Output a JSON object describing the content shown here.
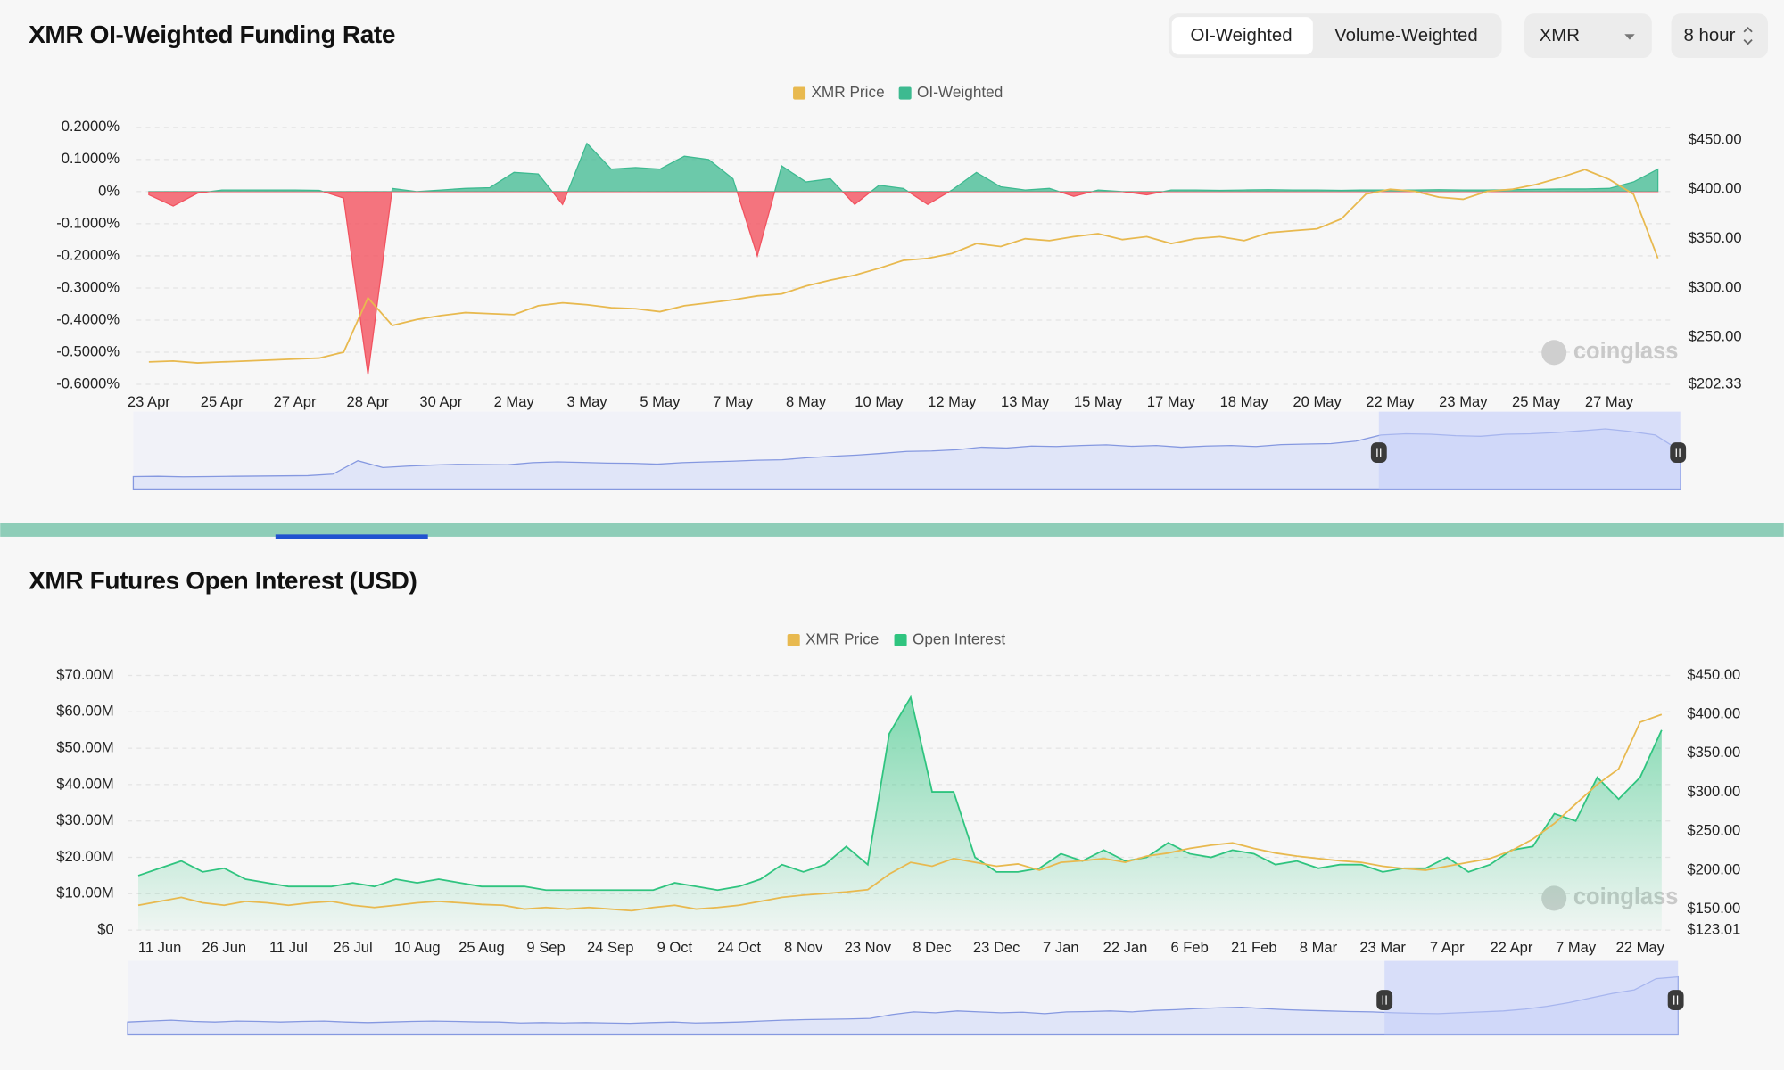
{
  "controls": {
    "mode_tabs": [
      "OI-Weighted",
      "Volume-Weighted"
    ],
    "symbol": "XMR",
    "interval": "8 hour"
  },
  "chart_data": [
    {
      "type": "area",
      "title": "XMR OI-Weighted Funding Rate",
      "watermark": "coinglass",
      "grid": true,
      "categories": [
        "23 Apr",
        null,
        null,
        "25 Apr",
        null,
        null,
        "27 Apr",
        null,
        null,
        "28 Apr",
        null,
        null,
        "30 Apr",
        null,
        null,
        "2 May",
        null,
        null,
        "3 May",
        null,
        null,
        "5 May",
        null,
        null,
        "7 May",
        null,
        null,
        "8 May",
        null,
        null,
        "10 May",
        null,
        null,
        "12 May",
        null,
        null,
        "13 May",
        null,
        null,
        "15 May",
        null,
        null,
        "17 May",
        null,
        null,
        "18 May",
        null,
        null,
        "20 May",
        null,
        null,
        "22 May",
        null,
        null,
        "23 May",
        null,
        null,
        "25 May",
        null,
        null,
        "27 May",
        null,
        null
      ],
      "ylim": [
        -0.6,
        0.2
      ],
      "yticks": [
        {
          "value": 0.2,
          "label": "0.2000%"
        },
        {
          "value": 0.1,
          "label": "0.1000%"
        },
        {
          "value": 0,
          "label": "0%"
        },
        {
          "value": -0.1,
          "label": "-0.1000%"
        },
        {
          "value": -0.2,
          "label": "-0.2000%"
        },
        {
          "value": -0.3,
          "label": "-0.3000%"
        },
        {
          "value": -0.4,
          "label": "-0.4000%"
        },
        {
          "value": -0.5,
          "label": "-0.5000%"
        },
        {
          "value": -0.6,
          "label": "-0.6000%"
        }
      ],
      "y2lim": [
        202.33,
        462.8
      ],
      "y2ticks": [
        {
          "value": 450,
          "label": "$450.00"
        },
        {
          "value": 400,
          "label": "$400.00"
        },
        {
          "value": 350,
          "label": "$350.00"
        },
        {
          "value": 300,
          "label": "$300.00"
        },
        {
          "value": 250,
          "label": "$250.00"
        },
        {
          "value": 202.33,
          "label": "$202.33"
        }
      ],
      "series": [
        {
          "name": "XMR Price",
          "type": "line",
          "axis": "y2",
          "color": "#e8b94f",
          "values": [
            225,
            226,
            224,
            225,
            226,
            227,
            228,
            229,
            235,
            290,
            262,
            268,
            272,
            275,
            274,
            273,
            282,
            285,
            283,
            280,
            279,
            276,
            282,
            285,
            288,
            292,
            294,
            302,
            308,
            313,
            320,
            328,
            330,
            335,
            345,
            342,
            350,
            348,
            352,
            355,
            349,
            352,
            345,
            350,
            352,
            348,
            356,
            358,
            360,
            370,
            395,
            400,
            398,
            392,
            390,
            398,
            400,
            405,
            412,
            420,
            410,
            395,
            330
          ]
        },
        {
          "name": "OI-Weighted",
          "type": "area",
          "color": "#3dba90",
          "negative_color": "#f2525f",
          "values": [
            -0.01,
            -0.045,
            -0.005,
            0.005,
            0.005,
            0.005,
            0.005,
            0.004,
            -0.02,
            -0.57,
            0.01,
            0.0,
            0.005,
            0.01,
            0.012,
            0.06,
            0.055,
            -0.04,
            0.15,
            0.07,
            0.075,
            0.07,
            0.11,
            0.1,
            0.04,
            -0.2,
            0.08,
            0.03,
            0.04,
            -0.04,
            0.02,
            0.01,
            -0.04,
            0.005,
            0.06,
            0.015,
            0.005,
            0.01,
            -0.015,
            0.005,
            0.0,
            -0.01,
            0.005,
            0.005,
            0.004,
            0.005,
            0.006,
            0.005,
            0.005,
            0.004,
            0.005,
            0.005,
            0.005,
            0.006,
            0.005,
            0.005,
            0.006,
            0.007,
            0.008,
            0.008,
            0.01,
            0.03,
            0.07
          ]
        }
      ]
    },
    {
      "type": "area",
      "title": "XMR Futures Open Interest (USD)",
      "watermark": "coinglass",
      "grid": true,
      "categories": [
        null,
        "11 Jun",
        null,
        null,
        "26 Jun",
        null,
        null,
        "11 Jul",
        null,
        null,
        "26 Jul",
        null,
        null,
        "10 Aug",
        null,
        null,
        "25 Aug",
        null,
        null,
        "9 Sep",
        null,
        null,
        "24 Sep",
        null,
        null,
        "9 Oct",
        null,
        null,
        "24 Oct",
        null,
        null,
        "8 Nov",
        null,
        null,
        "23 Nov",
        null,
        null,
        "8 Dec",
        null,
        null,
        "23 Dec",
        null,
        null,
        "7 Jan",
        null,
        null,
        "22 Jan",
        null,
        null,
        "6 Feb",
        null,
        null,
        "21 Feb",
        null,
        null,
        "8 Mar",
        null,
        null,
        "23 Mar",
        null,
        null,
        "7 Apr",
        null,
        null,
        "22 Apr",
        null,
        null,
        "7 May",
        null,
        null,
        "22 May",
        null
      ],
      "ylim": [
        0,
        70000000
      ],
      "yticks": [
        {
          "value": 70000000,
          "label": "$70.00M"
        },
        {
          "value": 60000000,
          "label": "$60.00M"
        },
        {
          "value": 50000000,
          "label": "$50.00M"
        },
        {
          "value": 40000000,
          "label": "$40.00M"
        },
        {
          "value": 30000000,
          "label": "$30.00M"
        },
        {
          "value": 20000000,
          "label": "$20.00M"
        },
        {
          "value": 10000000,
          "label": "$10.00M"
        },
        {
          "value": 0,
          "label": "$0"
        }
      ],
      "y2lim": [
        123.01,
        450
      ],
      "y2ticks": [
        {
          "value": 450,
          "label": "$450.00"
        },
        {
          "value": 400,
          "label": "$400.00"
        },
        {
          "value": 350,
          "label": "$350.00"
        },
        {
          "value": 300,
          "label": "$300.00"
        },
        {
          "value": 250,
          "label": "$250.00"
        },
        {
          "value": 200,
          "label": "$200.00"
        },
        {
          "value": 150,
          "label": "$150.00"
        },
        {
          "value": 123.01,
          "label": "$123.01"
        }
      ],
      "series": [
        {
          "name": "XMR Price",
          "type": "line",
          "axis": "y2",
          "color": "#e8b94f",
          "values": [
            155,
            160,
            165,
            158,
            155,
            160,
            158,
            155,
            158,
            160,
            155,
            152,
            155,
            158,
            160,
            158,
            156,
            155,
            150,
            152,
            150,
            152,
            150,
            148,
            152,
            155,
            150,
            152,
            155,
            160,
            165,
            168,
            170,
            172,
            175,
            195,
            210,
            205,
            215,
            210,
            205,
            208,
            200,
            210,
            212,
            215,
            210,
            218,
            222,
            228,
            232,
            235,
            228,
            222,
            218,
            215,
            212,
            210,
            205,
            202,
            200,
            205,
            210,
            215,
            225,
            240,
            260,
            285,
            310,
            330,
            390,
            400
          ]
        },
        {
          "name": "Open Interest",
          "type": "area",
          "color": "#2fc47f",
          "values": [
            15000000,
            17000000,
            19000000,
            16000000,
            17000000,
            14000000,
            13000000,
            12000000,
            12000000,
            12000000,
            13000000,
            12000000,
            14000000,
            13000000,
            14000000,
            13000000,
            12000000,
            12000000,
            12000000,
            11000000,
            11000000,
            11000000,
            11000000,
            11000000,
            11000000,
            13000000,
            12000000,
            11000000,
            12000000,
            14000000,
            18000000,
            16000000,
            18000000,
            23000000,
            18000000,
            54000000,
            64000000,
            38000000,
            38000000,
            20000000,
            16000000,
            16000000,
            17000000,
            21000000,
            19000000,
            22000000,
            19000000,
            20000000,
            24000000,
            21000000,
            20000000,
            22000000,
            21000000,
            18000000,
            19000000,
            17000000,
            18000000,
            18000000,
            16000000,
            17000000,
            17000000,
            20000000,
            16000000,
            18000000,
            22000000,
            23000000,
            32000000,
            30000000,
            42000000,
            36000000,
            42000000,
            55000000
          ]
        }
      ]
    }
  ]
}
